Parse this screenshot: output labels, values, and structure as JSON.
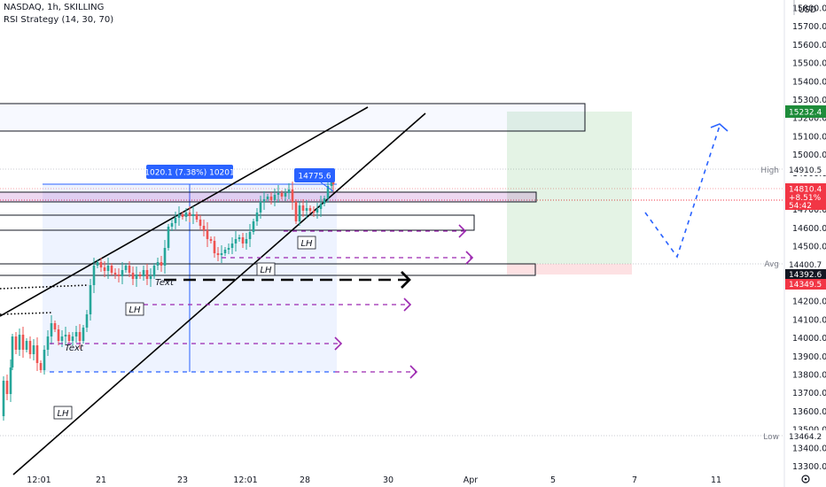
{
  "header": {
    "symbol_line": "NASDAQ, 1h, SKILLING",
    "indicator_line": "RSI Strategy (14, 30, 70)"
  },
  "price_axis": {
    "currency": "USD",
    "ticks": [
      "15800.0",
      "15700.0",
      "15600.0",
      "15500.0",
      "15400.0",
      "15300.0",
      "15200.0",
      "15100.0",
      "15000.0",
      "14900.0",
      "14800.0",
      "14700.0",
      "14600.0",
      "14500.0",
      "14400.0",
      "14300.0",
      "14200.0",
      "14100.0",
      "14000.0",
      "13900.0",
      "13800.0",
      "13700.0",
      "13600.0",
      "13500.0",
      "13400.0",
      "13300.0"
    ],
    "high": {
      "label": "High",
      "value": "14910.5"
    },
    "avg": {
      "label": "Avg",
      "value": "14400.7"
    },
    "low": {
      "label": "Low",
      "value": "13464.2"
    },
    "target_price": "15232.4",
    "current": {
      "price": "14810.4",
      "change": "+8.51%",
      "countdown": "54:42"
    },
    "level_a": "14392.6",
    "level_b": "14349.5"
  },
  "time_axis": {
    "labels": [
      "12:01",
      "21",
      "23",
      "12:01",
      "28",
      "30",
      "Apr",
      "5",
      "7",
      "11"
    ]
  },
  "annotations": {
    "measure_label": "1020.1 (7.38%) 10201",
    "price_bubble": "14775.6",
    "lh_labels": [
      "LH",
      "LH",
      "LH",
      "LH"
    ],
    "text_labels": [
      "Text",
      "Text"
    ]
  },
  "colors": {
    "up": "#26a69a",
    "down": "#ef5350",
    "blue": "#2962ff",
    "purple": "#9c27b0",
    "target_green": "#1e8c3a",
    "current_red": "#f23645"
  }
}
